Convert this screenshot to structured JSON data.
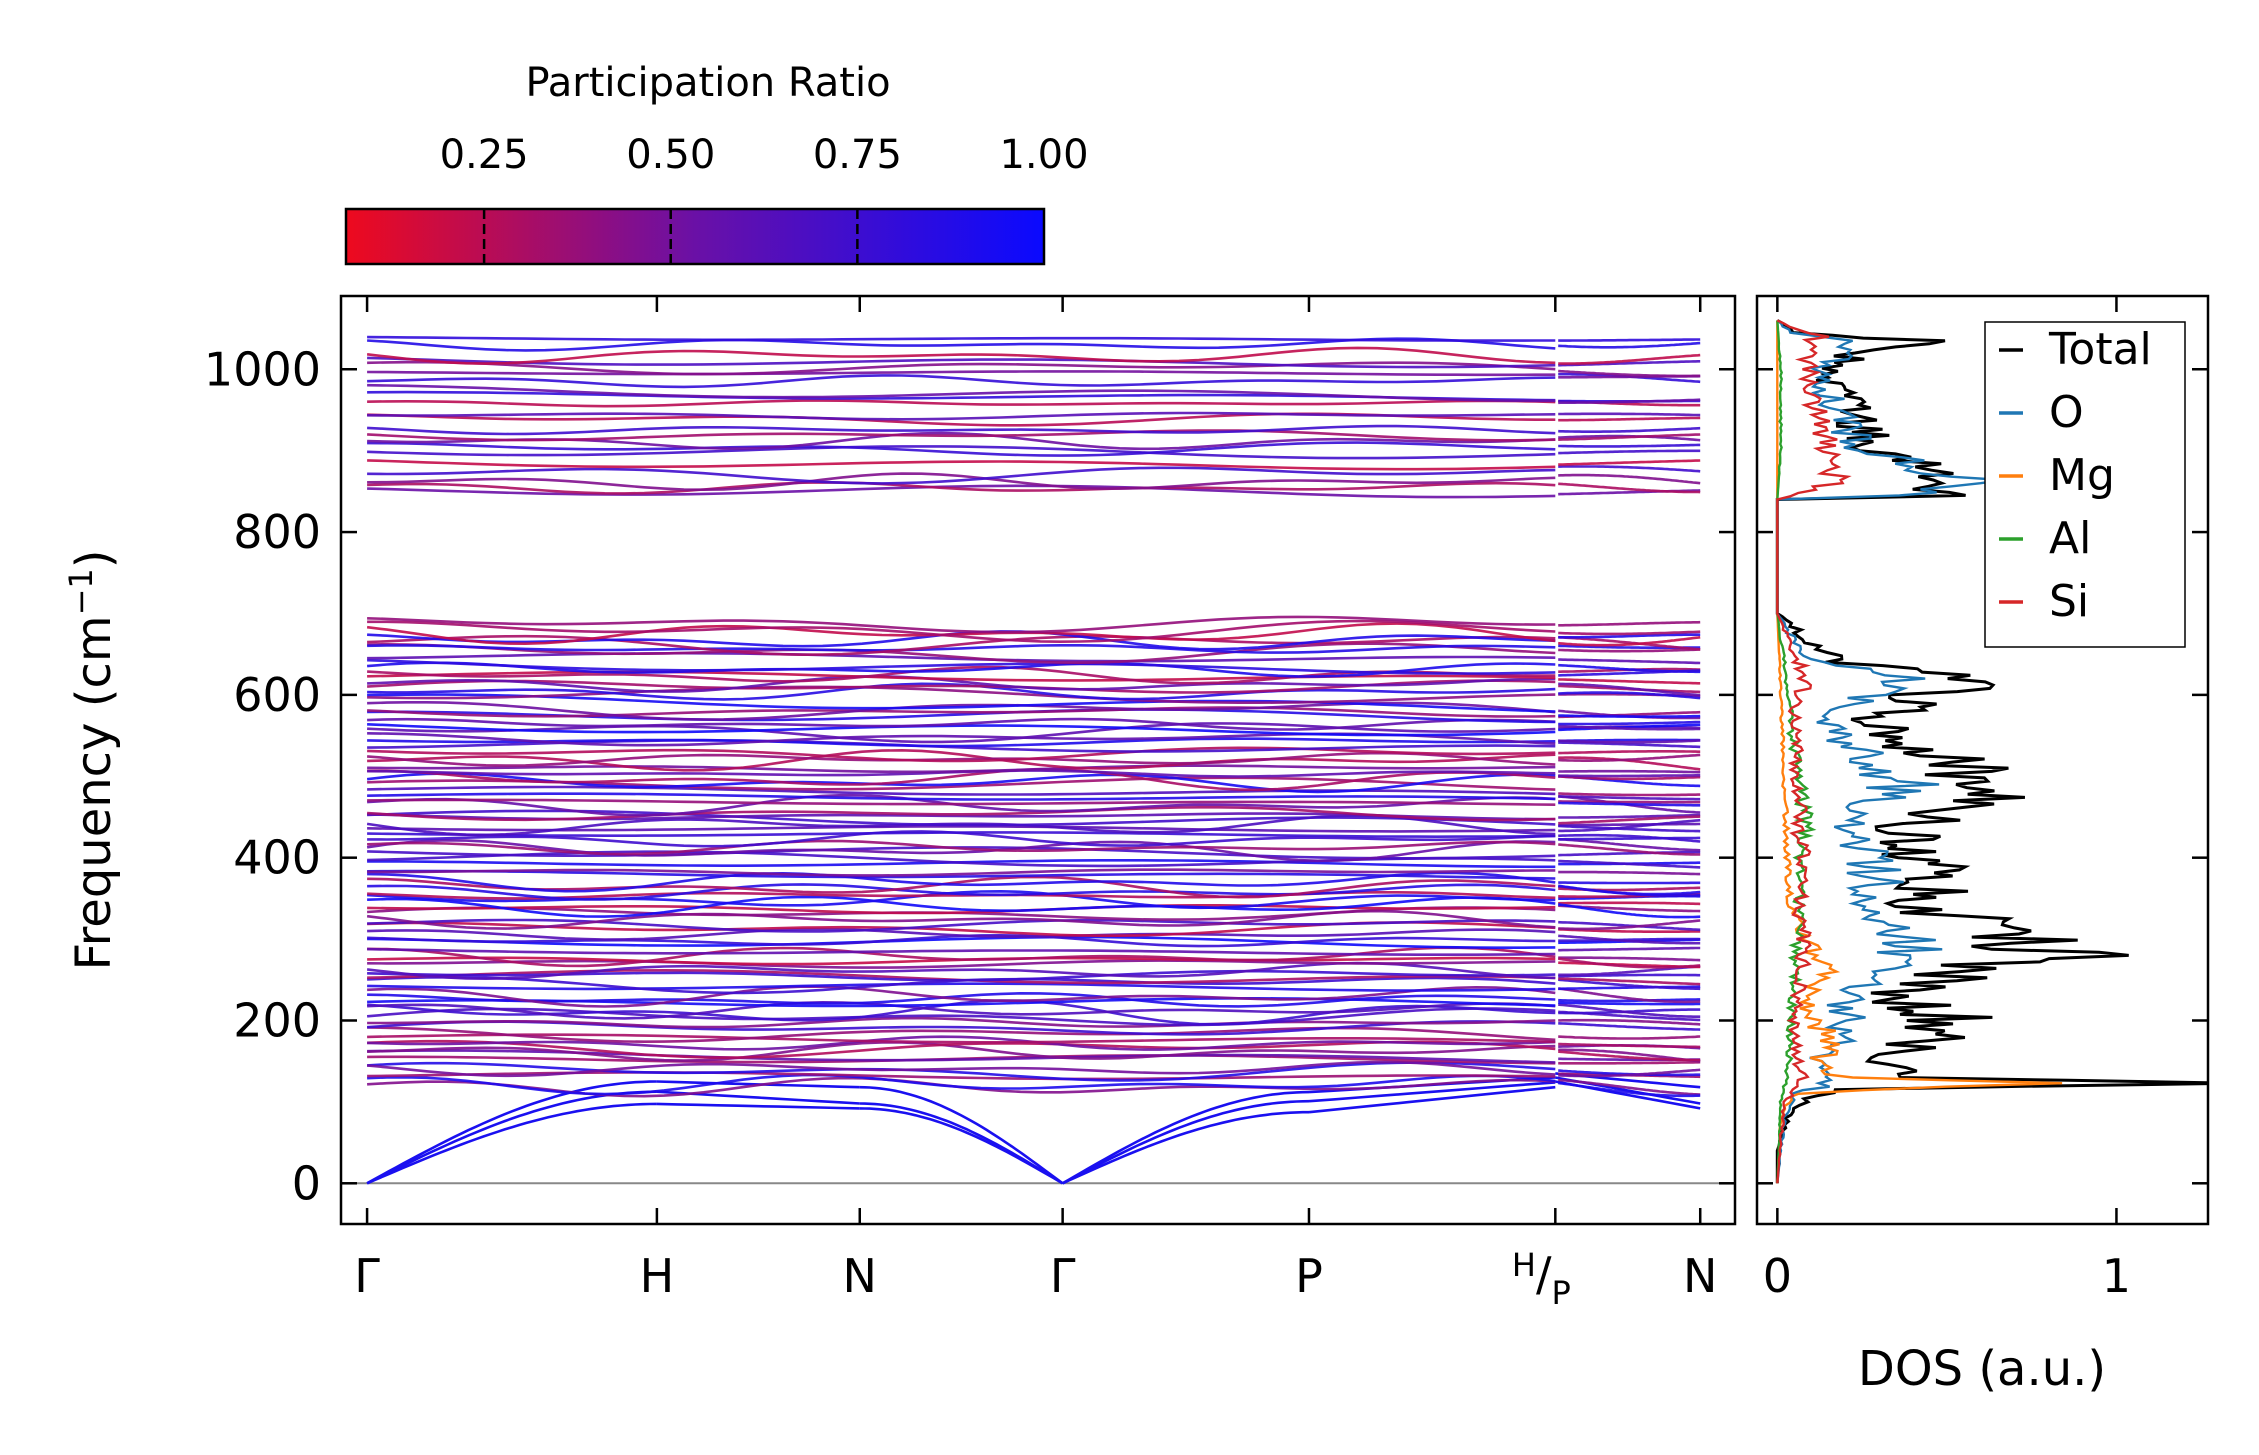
{
  "colorbar": {
    "title": "Participation Ratio",
    "tick_labels": [
      "0.25",
      "0.50",
      "0.75",
      "1.00"
    ],
    "tick_values": [
      0.25,
      0.5,
      0.75,
      1.0
    ],
    "range": [
      0.065,
      1.0
    ],
    "color_low": "#ee0a1e",
    "color_mid": "#6a10a6",
    "color_high": "#0a0aff"
  },
  "chart_data": [
    {
      "type": "line",
      "title": "",
      "xlabel": "",
      "ylabel": "Frequency (cm",
      "ylabel_sup": "−1",
      "ylabel_close": ")",
      "ylim": [
        -50,
        1090
      ],
      "y_ticks": [
        0,
        200,
        400,
        600,
        800,
        1000
      ],
      "y_tick_labels": [
        "0",
        "200",
        "400",
        "600",
        "800",
        "1000"
      ],
      "path_points": [
        {
          "label": "Γ",
          "x": 0.0
        },
        {
          "label": "H",
          "x": 1.0
        },
        {
          "label": "N",
          "x": 1.7
        },
        {
          "label": "Γ",
          "x": 2.4
        },
        {
          "label": "P",
          "x": 3.25
        },
        {
          "label": "H|P",
          "x": 4.1,
          "label_top": "H",
          "label_bottom": "P"
        },
        {
          "label": "N",
          "x": 4.6
        }
      ],
      "segment_break_at": 4.1,
      "acoustic_max_at_H": 125,
      "acoustic_at_N": [
        92,
        98,
        118
      ],
      "optical_band_ranges_cm1": [
        [
          110,
          700
        ],
        [
          840,
          1045
        ]
      ],
      "description_note": "Dense phonon bands colored by participation ratio"
    },
    {
      "type": "line",
      "xlabel": "DOS (a.u.)",
      "xlim": [
        -0.06,
        1.27
      ],
      "ylim": [
        -50,
        1090
      ],
      "x_ticks": [
        0,
        1
      ],
      "x_tick_labels": [
        "0",
        "1"
      ],
      "legend_placement": "top-right",
      "series": [
        {
          "name": "Total",
          "color": "#000000",
          "y": [
            0,
            40,
            80,
            100,
            115,
            123,
            130,
            150,
            175,
            200,
            230,
            260,
            280,
            310,
            340,
            370,
            400,
            430,
            450,
            470,
            490,
            510,
            540,
            570,
            600,
            620,
            640,
            660,
            680,
            700,
            760,
            840,
            845,
            860,
            880,
            900,
            930,
            960,
            990,
            1020,
            1035,
            1045,
            1060
          ],
          "values": [
            0,
            0,
            0.03,
            0.08,
            0.2,
            1.22,
            0.45,
            0.3,
            0.42,
            0.53,
            0.35,
            0.55,
            0.86,
            0.66,
            0.45,
            0.52,
            0.42,
            0.38,
            0.45,
            0.55,
            0.67,
            0.55,
            0.35,
            0.3,
            0.42,
            0.6,
            0.2,
            0.1,
            0.06,
            0,
            0,
            0,
            0.52,
            0.6,
            0.45,
            0.3,
            0.25,
            0.2,
            0.15,
            0.22,
            0.4,
            0.05,
            0
          ]
        },
        {
          "name": "O",
          "color": "#1f77b4",
          "y": [
            0,
            80,
            110,
            123,
            150,
            175,
            200,
            230,
            260,
            280,
            310,
            340,
            370,
            400,
            430,
            450,
            470,
            490,
            510,
            540,
            570,
            600,
            620,
            640,
            660,
            680,
            700,
            840,
            845,
            860,
            880,
            900,
            930,
            960,
            990,
            1020,
            1035,
            1045,
            1060
          ],
          "values": [
            0,
            0.02,
            0.06,
            0.15,
            0.12,
            0.18,
            0.22,
            0.2,
            0.3,
            0.4,
            0.35,
            0.22,
            0.3,
            0.28,
            0.2,
            0.22,
            0.3,
            0.38,
            0.32,
            0.2,
            0.15,
            0.25,
            0.38,
            0.12,
            0.06,
            0.03,
            0,
            0,
            0.48,
            0.55,
            0.4,
            0.25,
            0.2,
            0.16,
            0.12,
            0.18,
            0.3,
            0.04,
            0
          ]
        },
        {
          "name": "Mg",
          "color": "#ff7f0e",
          "y": [
            0,
            80,
            110,
            123,
            130,
            150,
            175,
            200,
            230,
            260,
            280,
            300,
            340,
            400,
            500,
            600,
            700,
            1060
          ],
          "values": [
            0,
            0.01,
            0.05,
            0.84,
            0.2,
            0.12,
            0.18,
            0.1,
            0.08,
            0.15,
            0.12,
            0.08,
            0.04,
            0.03,
            0.02,
            0.01,
            0,
            0
          ]
        },
        {
          "name": "Al",
          "color": "#2ca02c",
          "y": [
            0,
            100,
            130,
            200,
            250,
            300,
            350,
            400,
            450,
            470,
            500,
            530,
            560,
            600,
            640,
            700,
            840,
            900,
            1000,
            1060
          ],
          "values": [
            0,
            0.01,
            0.03,
            0.04,
            0.05,
            0.06,
            0.07,
            0.06,
            0.09,
            0.07,
            0.08,
            0.05,
            0.04,
            0.03,
            0.02,
            0,
            0,
            0.01,
            0.01,
            0
          ]
        },
        {
          "name": "Si",
          "color": "#d62728",
          "y": [
            0,
            100,
            123,
            150,
            200,
            250,
            300,
            330,
            360,
            400,
            430,
            470,
            500,
            540,
            580,
            620,
            660,
            700,
            840,
            860,
            880,
            910,
            940,
            980,
            1020,
            1040,
            1060
          ],
          "values": [
            0,
            0.02,
            0.08,
            0.06,
            0.05,
            0.07,
            0.08,
            0.06,
            0.07,
            0.08,
            0.06,
            0.07,
            0.05,
            0.06,
            0.05,
            0.09,
            0.04,
            0,
            0,
            0.15,
            0.18,
            0.14,
            0.12,
            0.1,
            0.09,
            0.12,
            0
          ]
        }
      ]
    }
  ]
}
